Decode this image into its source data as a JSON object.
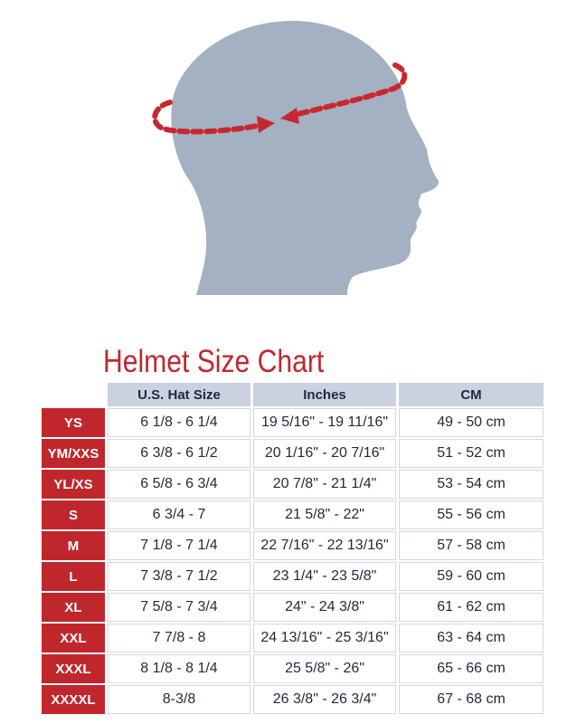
{
  "title": "Helmet Size Chart",
  "colors": {
    "accent": "#c0272d",
    "header": "#c9d2de",
    "head_silhouette": "#a3b1c2"
  },
  "illustration": {
    "icon": "head-profile-measuring-circumference-icon"
  },
  "chart_data": {
    "type": "table",
    "title": "Helmet Size Chart",
    "columns": [
      "U.S. Hat Size",
      "Inches",
      "CM"
    ],
    "rows": [
      {
        "size": "YS",
        "hat": "6 1/8 - 6 1/4",
        "inches": "19 5/16\" - 19 11/16\"",
        "cm": "49 - 50 cm"
      },
      {
        "size": "YM/XXS",
        "hat": "6 3/8 - 6 1/2",
        "inches": "20 1/16\" - 20 7/16\"",
        "cm": "51 - 52 cm"
      },
      {
        "size": "YL/XS",
        "hat": "6 5/8 - 6 3/4",
        "inches": "20 7/8\" - 21 1/4\"",
        "cm": "53 - 54 cm"
      },
      {
        "size": "S",
        "hat": "6 3/4 - 7",
        "inches": "21 5/8\" - 22\"",
        "cm": "55 - 56 cm"
      },
      {
        "size": "M",
        "hat": "7 1/8 - 7 1/4",
        "inches": "22 7/16\" - 22 13/16\"",
        "cm": "57 - 58 cm"
      },
      {
        "size": "L",
        "hat": "7 3/8 - 7 1/2",
        "inches": "23 1/4\" - 23 5/8\"",
        "cm": "59 - 60 cm"
      },
      {
        "size": "XL",
        "hat": "7 5/8 - 7 3/4",
        "inches": "24\" - 24 3/8\"",
        "cm": "61 - 62 cm"
      },
      {
        "size": "XXL",
        "hat": "7 7/8 - 8",
        "inches": "24 13/16\" - 25 3/16\"",
        "cm": "63 - 64 cm"
      },
      {
        "size": "XXXL",
        "hat": "8 1/8 - 8 1/4",
        "inches": "25 5/8\" - 26\"",
        "cm": "65 - 66 cm"
      },
      {
        "size": "XXXXL",
        "hat": "8-3/8",
        "inches": "26 3/8\" - 26 3/4\"",
        "cm": "67 - 68 cm"
      }
    ]
  }
}
